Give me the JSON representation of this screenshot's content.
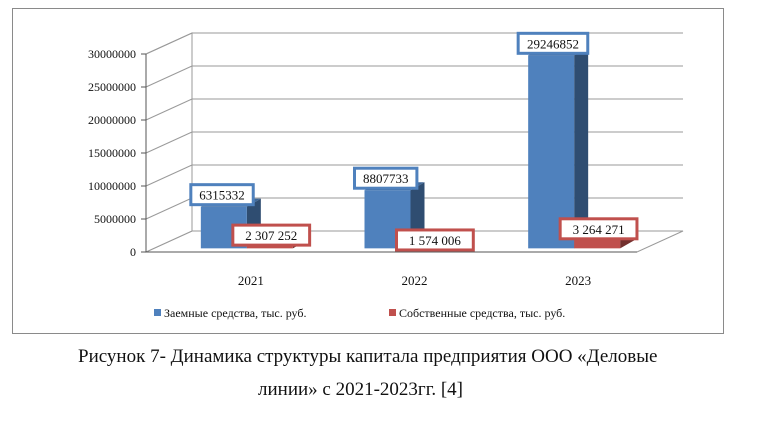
{
  "chart_data": {
    "type": "bar",
    "categories": [
      "2021",
      "2022",
      "2023"
    ],
    "series": [
      {
        "name": "Заемные средства, тыс. руб.",
        "color": "#4f81bd",
        "values": [
          6315332,
          8807733,
          29246852
        ],
        "labels": [
          "6315332",
          "8807733",
          "29246852"
        ]
      },
      {
        "name": "Собственные средства, тыс. руб.",
        "color": "#c0504d",
        "values": [
          2307252,
          1574006,
          3264271
        ],
        "labels": [
          "2 307 252",
          "1 574 006",
          "3 264 271"
        ]
      }
    ],
    "y_ticks": [
      "0",
      "5000000",
      "10000000",
      "15000000",
      "20000000",
      "25000000",
      "30000000"
    ],
    "ylim": [
      0,
      30000000
    ],
    "grid": true,
    "legend_position": "bottom",
    "style": "3d-clustered-column"
  },
  "caption": {
    "line1": "Рисунок 7- Динамика структуры капитала предприятия ООО «Деловые",
    "line2": "линии» с 2021-2023гг. [4]"
  }
}
